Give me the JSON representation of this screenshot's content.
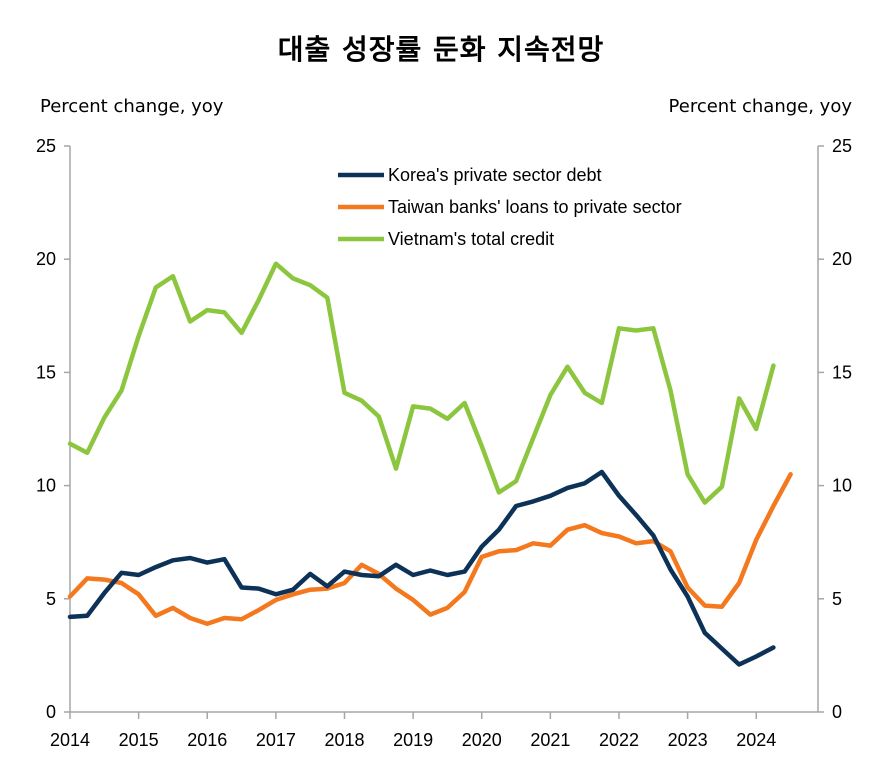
{
  "chart_data": {
    "type": "line",
    "title": "대출 성장률 둔화 지속전망",
    "ylabel_left": "Percent change, yoy",
    "ylabel_right": "Percent change, yoy",
    "ylim": [
      0,
      25
    ],
    "yticks": [
      0,
      5,
      10,
      15,
      20,
      25
    ],
    "xlim": [
      2014,
      2024.9
    ],
    "xticks": [
      2014,
      2015,
      2016,
      2017,
      2018,
      2019,
      2020,
      2021,
      2022,
      2023,
      2024
    ],
    "grid": false,
    "legend_position": "top-center",
    "series": [
      {
        "name": "Korea's private sector debt",
        "color": "#0d3257",
        "points": [
          [
            2014.0,
            4.2
          ],
          [
            2014.25,
            4.25
          ],
          [
            2014.5,
            5.25
          ],
          [
            2014.75,
            6.15
          ],
          [
            2015.0,
            6.05
          ],
          [
            2015.25,
            6.4
          ],
          [
            2015.5,
            6.7
          ],
          [
            2015.75,
            6.8
          ],
          [
            2016.0,
            6.6
          ],
          [
            2016.25,
            6.75
          ],
          [
            2016.5,
            5.5
          ],
          [
            2016.75,
            5.45
          ],
          [
            2017.0,
            5.2
          ],
          [
            2017.25,
            5.4
          ],
          [
            2017.5,
            6.1
          ],
          [
            2017.75,
            5.55
          ],
          [
            2018.0,
            6.2
          ],
          [
            2018.25,
            6.05
          ],
          [
            2018.5,
            6.0
          ],
          [
            2018.75,
            6.5
          ],
          [
            2019.0,
            6.05
          ],
          [
            2019.25,
            6.25
          ],
          [
            2019.5,
            6.05
          ],
          [
            2019.75,
            6.2
          ],
          [
            2020.0,
            7.3
          ],
          [
            2020.25,
            8.05
          ],
          [
            2020.5,
            9.1
          ],
          [
            2020.75,
            9.3
          ],
          [
            2021.0,
            9.55
          ],
          [
            2021.25,
            9.9
          ],
          [
            2021.5,
            10.1
          ],
          [
            2021.75,
            10.6
          ],
          [
            2022.0,
            9.55
          ],
          [
            2022.25,
            8.7
          ],
          [
            2022.5,
            7.8
          ],
          [
            2022.75,
            6.3
          ],
          [
            2023.0,
            5.1
          ],
          [
            2023.25,
            3.5
          ],
          [
            2023.5,
            2.8
          ],
          [
            2023.75,
            2.1
          ],
          [
            2024.0,
            2.45
          ],
          [
            2024.25,
            2.85
          ]
        ]
      },
      {
        "name": "Taiwan banks' loans to private sector",
        "color": "#f4781e",
        "points": [
          [
            2014.0,
            5.1
          ],
          [
            2014.25,
            5.9
          ],
          [
            2014.5,
            5.85
          ],
          [
            2014.75,
            5.7
          ],
          [
            2015.0,
            5.2
          ],
          [
            2015.25,
            4.25
          ],
          [
            2015.5,
            4.6
          ],
          [
            2015.75,
            4.15
          ],
          [
            2016.0,
            3.9
          ],
          [
            2016.25,
            4.15
          ],
          [
            2016.5,
            4.1
          ],
          [
            2016.75,
            4.5
          ],
          [
            2017.0,
            4.95
          ],
          [
            2017.25,
            5.2
          ],
          [
            2017.5,
            5.4
          ],
          [
            2017.75,
            5.45
          ],
          [
            2018.0,
            5.7
          ],
          [
            2018.25,
            6.5
          ],
          [
            2018.5,
            6.1
          ],
          [
            2018.75,
            5.45
          ],
          [
            2019.0,
            4.95
          ],
          [
            2019.25,
            4.3
          ],
          [
            2019.5,
            4.6
          ],
          [
            2019.75,
            5.3
          ],
          [
            2020.0,
            6.85
          ],
          [
            2020.25,
            7.1
          ],
          [
            2020.5,
            7.15
          ],
          [
            2020.75,
            7.45
          ],
          [
            2021.0,
            7.35
          ],
          [
            2021.25,
            8.05
          ],
          [
            2021.5,
            8.25
          ],
          [
            2021.75,
            7.9
          ],
          [
            2022.0,
            7.75
          ],
          [
            2022.25,
            7.45
          ],
          [
            2022.5,
            7.55
          ],
          [
            2022.75,
            7.1
          ],
          [
            2023.0,
            5.5
          ],
          [
            2023.25,
            4.7
          ],
          [
            2023.5,
            4.65
          ],
          [
            2023.75,
            5.7
          ],
          [
            2024.0,
            7.6
          ],
          [
            2024.25,
            9.1
          ],
          [
            2024.5,
            10.5
          ]
        ]
      },
      {
        "name": "Vietnam's total credit",
        "color": "#8cc63f",
        "points": [
          [
            2014.0,
            11.85
          ],
          [
            2014.25,
            11.45
          ],
          [
            2014.5,
            13.0
          ],
          [
            2014.75,
            14.2
          ],
          [
            2015.0,
            16.6
          ],
          [
            2015.25,
            18.75
          ],
          [
            2015.5,
            19.25
          ],
          [
            2015.75,
            17.25
          ],
          [
            2016.0,
            17.75
          ],
          [
            2016.25,
            17.65
          ],
          [
            2016.5,
            16.75
          ],
          [
            2016.75,
            18.2
          ],
          [
            2017.0,
            19.8
          ],
          [
            2017.25,
            19.15
          ],
          [
            2017.5,
            18.85
          ],
          [
            2017.75,
            18.3
          ],
          [
            2018.0,
            14.1
          ],
          [
            2018.25,
            13.75
          ],
          [
            2018.5,
            13.05
          ],
          [
            2018.75,
            10.75
          ],
          [
            2019.0,
            13.5
          ],
          [
            2019.25,
            13.4
          ],
          [
            2019.5,
            12.95
          ],
          [
            2019.75,
            13.65
          ],
          [
            2020.0,
            11.75
          ],
          [
            2020.25,
            9.7
          ],
          [
            2020.5,
            10.2
          ],
          [
            2020.75,
            12.1
          ],
          [
            2021.0,
            14.0
          ],
          [
            2021.25,
            15.25
          ],
          [
            2021.5,
            14.1
          ],
          [
            2021.75,
            13.65
          ],
          [
            2022.0,
            16.95
          ],
          [
            2022.25,
            16.85
          ],
          [
            2022.5,
            16.95
          ],
          [
            2022.75,
            14.2
          ],
          [
            2023.0,
            10.5
          ],
          [
            2023.25,
            9.25
          ],
          [
            2023.5,
            9.95
          ],
          [
            2023.75,
            13.85
          ],
          [
            2024.0,
            12.5
          ],
          [
            2024.25,
            15.3
          ]
        ]
      }
    ]
  }
}
